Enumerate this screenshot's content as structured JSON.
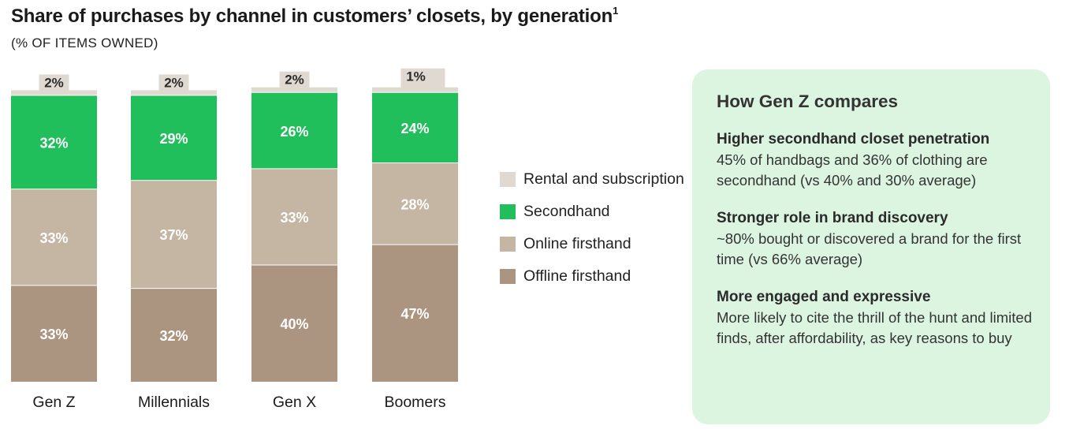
{
  "title": "Share of purchases by channel in customers’ closets, by generation",
  "title_footnote": "1",
  "subtitle": "(% OF ITEMS OWNED)",
  "chart_data": {
    "type": "bar",
    "stacked": true,
    "orientation": "vertical",
    "unit": "%",
    "categories": [
      "Gen Z",
      "Millennials",
      "Gen X",
      "Boomers"
    ],
    "series": [
      {
        "name": "Offline firsthand",
        "color": "#ab9580",
        "values": [
          33,
          32,
          40,
          47
        ],
        "labels": [
          "33%",
          "32%",
          "40%",
          "47%"
        ]
      },
      {
        "name": "Online firsthand",
        "color": "#c5b5a3",
        "values": [
          33,
          37,
          33,
          28
        ],
        "labels": [
          "33%",
          "37%",
          "33%",
          "28%"
        ]
      },
      {
        "name": "Secondhand",
        "color": "#21bf5b",
        "values": [
          32,
          29,
          26,
          24
        ],
        "labels": [
          "32%",
          "29%",
          "26%",
          "24%"
        ]
      },
      {
        "name": "Rental and subscription",
        "color": "#e0d9d1",
        "values": [
          2,
          2,
          2,
          1
        ],
        "labels": [
          "2%",
          "2%",
          "2%",
          "1%"
        ]
      }
    ],
    "legend": [
      "Rental and subscription",
      "Secondhand",
      "Online firsthand",
      "Offline firsthand"
    ],
    "legend_position": "right"
  },
  "panel": {
    "heading": "How Gen Z compares",
    "blocks": [
      {
        "title": "Higher secondhand closet penetration",
        "text": "45% of handbags and 36% of clothing are secondhand (vs 40% and 30% average)"
      },
      {
        "title": "Stronger role in brand discovery",
        "text": "~80% bought or discovered a brand for the first time (vs 66% average)"
      },
      {
        "title": "More engaged and expressive",
        "text": "More likely to cite the thrill of the hunt and limited finds, after affordability, as key reasons to buy"
      }
    ]
  }
}
